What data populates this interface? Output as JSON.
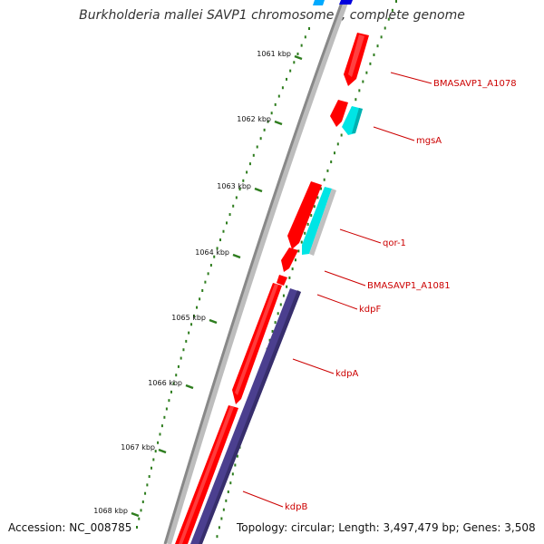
{
  "title": "Burkholderia mallei SAVP1 chromosome I, complete genome",
  "footer": {
    "accession": "Accession: NC_008785",
    "summary": "Topology: circular; Length: 3,497,479 bp; Genes: 3,508"
  },
  "ticks": [
    "1061 kbp",
    "1062 kbp",
    "1063 kbp",
    "1064 kbp",
    "1065 kbp",
    "1066 kbp",
    "1067 kbp",
    "1068 kbp"
  ],
  "gene_labels": [
    "BMASAVP1_A1078",
    "mgsA",
    "qor-1",
    "BMASAVP1_A1081",
    "kdpF",
    "kdpA",
    "kdpB"
  ],
  "colors": {
    "cds_red": "#ff0000",
    "cds_cyan": "#00e5e5",
    "rna_grey": "#c0c0c0",
    "blue": "#0000dd",
    "light_blue": "#00aaff",
    "purple": "#4b3f8f",
    "backbone": "#888888",
    "tick_green": "#2e7d1e",
    "label_red": "#cc0000"
  }
}
